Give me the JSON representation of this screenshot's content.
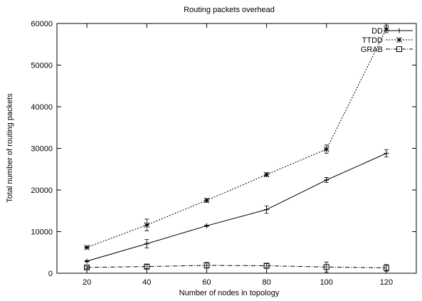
{
  "chart_data": {
    "type": "line",
    "title": "Routing packets overhead",
    "xlabel": "Number of nodes in topology",
    "ylabel": "Total number of routing packets",
    "x": [
      20,
      40,
      60,
      80,
      100,
      120
    ],
    "xlim": [
      10,
      130
    ],
    "ylim": [
      0,
      60000
    ],
    "xticks": [
      20,
      40,
      60,
      80,
      100,
      120
    ],
    "yticks": [
      0,
      10000,
      20000,
      30000,
      40000,
      50000,
      60000
    ],
    "grid": false,
    "legend_position": "top-right",
    "series": [
      {
        "name": "DD",
        "line_style": "solid",
        "marker": "plus",
        "values": [
          2900,
          7100,
          11400,
          15300,
          22400,
          28800
        ],
        "errors": [
          150,
          1000,
          150,
          900,
          600,
          900
        ]
      },
      {
        "name": "TTDD",
        "line_style": "dotted",
        "marker": "star",
        "values": [
          6200,
          11600,
          17500,
          23700,
          29800,
          58700
        ],
        "errors": [
          150,
          1400,
          400,
          400,
          1000,
          900
        ]
      },
      {
        "name": "GRAB",
        "line_style": "dashdot",
        "marker": "square",
        "values": [
          1400,
          1600,
          1900,
          1800,
          1500,
          1300
        ],
        "errors": [
          300,
          500,
          700,
          500,
          1200,
          800
        ]
      }
    ]
  }
}
